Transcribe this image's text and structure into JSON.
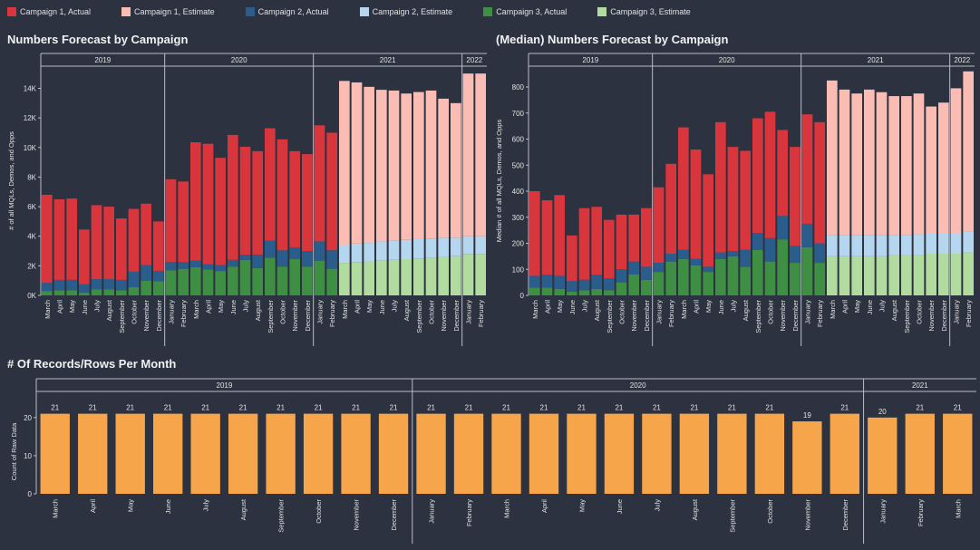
{
  "legend": [
    {
      "label": "Campaign 1, Actual",
      "color": "#d8363c"
    },
    {
      "label": "Campaign 1, Estimate",
      "color": "#fbbcb3"
    },
    {
      "label": "Campaign 2, Actual",
      "color": "#2a5c8c"
    },
    {
      "label": "Campaign 2, Estimate",
      "color": "#b4d6ee"
    },
    {
      "label": "Campaign 3, Actual",
      "color": "#3e8e44"
    },
    {
      "label": "Campaign 3, Estimate",
      "color": "#b2dc9f"
    }
  ],
  "chart_data": [
    {
      "type": "bar",
      "stacked": true,
      "title": "Numbers Forecast by Campaign",
      "ylabel": "# of all MQLs, Demos, and Opps",
      "ylim": [
        0,
        15500
      ],
      "yticks": [
        0,
        2000,
        4000,
        6000,
        8000,
        10000,
        12000,
        14000
      ],
      "ytick_labels": [
        "0K",
        "2K",
        "4K",
        "6K",
        "8K",
        "10K",
        "12K",
        "14K"
      ],
      "year_groups": [
        {
          "label": "2019",
          "count": 10
        },
        {
          "label": "2020",
          "count": 12
        },
        {
          "label": "2021",
          "count": 12
        },
        {
          "label": "2022",
          "count": 2
        }
      ],
      "categories": [
        "March",
        "April",
        "May",
        "June",
        "July",
        "August",
        "September",
        "October",
        "November",
        "December",
        "January",
        "February",
        "March",
        "April",
        "May",
        "June",
        "July",
        "August",
        "September",
        "October",
        "November",
        "December",
        "January",
        "February",
        "March",
        "April",
        "May",
        "June",
        "July",
        "August",
        "September",
        "October",
        "November",
        "December",
        "January",
        "February"
      ],
      "estimate_from_index": 24,
      "series": [
        {
          "name": "Campaign 3",
          "values": [
            300,
            350,
            350,
            200,
            400,
            400,
            350,
            550,
            1000,
            950,
            1700,
            1800,
            1900,
            1750,
            1650,
            1950,
            2400,
            1850,
            2550,
            1950,
            2450,
            1950,
            2350,
            1800,
            2200,
            2250,
            2300,
            2350,
            2400,
            2450,
            2500,
            2550,
            2600,
            2650,
            2800,
            2800
          ]
        },
        {
          "name": "Campaign 2",
          "values": [
            550,
            700,
            700,
            550,
            700,
            700,
            700,
            1050,
            1050,
            700,
            550,
            450,
            450,
            350,
            400,
            450,
            350,
            900,
            1150,
            1100,
            800,
            1050,
            1300,
            1250,
            1200,
            1250,
            1250,
            1300,
            1300,
            1300,
            1300,
            1300,
            1300,
            1250,
            1200,
            1200
          ]
        },
        {
          "name": "Campaign 1",
          "values": [
            5950,
            5450,
            5500,
            3700,
            5000,
            4900,
            4150,
            4250,
            4150,
            3350,
            5600,
            5450,
            8000,
            8150,
            7250,
            8450,
            7300,
            7000,
            7600,
            7500,
            6500,
            6550,
            7850,
            7950,
            11100,
            10900,
            10550,
            10250,
            10150,
            9900,
            9950,
            10000,
            9400,
            9100,
            11000,
            11000
          ]
        }
      ]
    },
    {
      "type": "bar",
      "stacked": true,
      "title": "(Median) Numbers Forecast by Campaign",
      "ylabel": "Median # of all MQLs, Demos, and Opps",
      "ylim": [
        0,
        880
      ],
      "yticks": [
        0,
        100,
        200,
        300,
        400,
        500,
        600,
        700,
        800
      ],
      "ytick_labels": [
        "0",
        "100",
        "200",
        "300",
        "400",
        "500",
        "600",
        "700",
        "800"
      ],
      "year_groups": [
        {
          "label": "2019",
          "count": 10
        },
        {
          "label": "2020",
          "count": 12
        },
        {
          "label": "2021",
          "count": 12
        },
        {
          "label": "2022",
          "count": 2
        }
      ],
      "categories": [
        "March",
        "April",
        "May",
        "June",
        "July",
        "August",
        "September",
        "October",
        "November",
        "December",
        "January",
        "February",
        "March",
        "April",
        "May",
        "June",
        "July",
        "August",
        "September",
        "October",
        "November",
        "December",
        "January",
        "February",
        "March",
        "April",
        "May",
        "June",
        "July",
        "August",
        "September",
        "October",
        "November",
        "December",
        "January",
        "February"
      ],
      "estimate_from_index": 24,
      "series": [
        {
          "name": "Campaign 3",
          "values": [
            30,
            30,
            25,
            15,
            20,
            25,
            20,
            50,
            80,
            60,
            90,
            130,
            140,
            115,
            90,
            140,
            150,
            110,
            175,
            130,
            215,
            125,
            185,
            125,
            150,
            150,
            150,
            150,
            150,
            155,
            155,
            155,
            160,
            160,
            160,
            165
          ]
        },
        {
          "name": "Campaign 2",
          "values": [
            45,
            50,
            50,
            40,
            40,
            55,
            45,
            50,
            50,
            50,
            35,
            30,
            35,
            25,
            20,
            25,
            20,
            65,
            65,
            90,
            90,
            65,
            90,
            75,
            80,
            80,
            80,
            80,
            80,
            75,
            75,
            80,
            80,
            80,
            80,
            80
          ]
        },
        {
          "name": "Campaign 1",
          "values": [
            325,
            285,
            310,
            175,
            275,
            260,
            225,
            210,
            180,
            225,
            290,
            345,
            470,
            420,
            355,
            500,
            400,
            380,
            440,
            485,
            330,
            380,
            420,
            465,
            595,
            560,
            545,
            560,
            550,
            535,
            535,
            540,
            485,
            500,
            555,
            615
          ]
        }
      ]
    },
    {
      "type": "bar",
      "title": "# Of Records/Rows Per Month",
      "ylabel": "Count of Raw Data",
      "ylim": [
        0,
        24
      ],
      "yticks": [
        0,
        10,
        20
      ],
      "ytick_labels": [
        "0",
        "10",
        "20"
      ],
      "color": "#f7a54a",
      "year_groups": [
        {
          "label": "2019",
          "count": 10
        },
        {
          "label": "2020",
          "count": 12
        },
        {
          "label": "2021",
          "count": 3
        }
      ],
      "categories": [
        "March",
        "April",
        "May",
        "June",
        "July",
        "August",
        "September",
        "October",
        "November",
        "December",
        "January",
        "February",
        "March",
        "April",
        "May",
        "June",
        "July",
        "August",
        "September",
        "October",
        "November",
        "December",
        "January",
        "February",
        "March"
      ],
      "values": [
        21,
        21,
        21,
        21,
        21,
        21,
        21,
        21,
        21,
        21,
        21,
        21,
        21,
        21,
        21,
        21,
        21,
        21,
        21,
        21,
        19,
        21,
        20,
        21,
        21
      ]
    }
  ]
}
